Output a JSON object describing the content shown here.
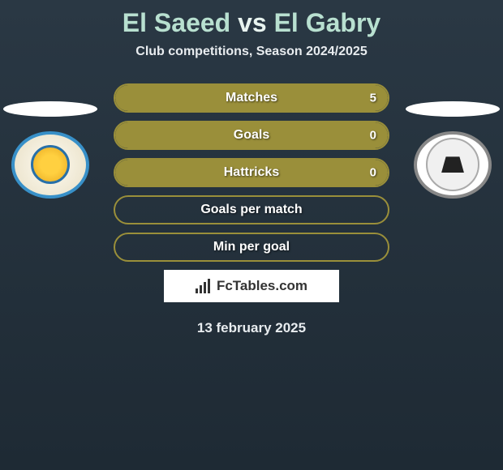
{
  "title": {
    "player1": "El Saeed",
    "vs": "vs",
    "player2": "El Gabry",
    "color_players": "#b8e0d0",
    "color_vs": "#e8f4f0"
  },
  "subtitle": "Club competitions, Season 2024/2025",
  "stats": {
    "border_color": "#9a8f3a",
    "fill_color": "#9a8f3a",
    "rows": [
      {
        "label": "Matches",
        "left_val": "",
        "right_val": "5",
        "left_pct": 0,
        "right_pct": 100
      },
      {
        "label": "Goals",
        "left_val": "",
        "right_val": "0",
        "left_pct": 0,
        "right_pct": 100
      },
      {
        "label": "Hattricks",
        "left_val": "",
        "right_val": "0",
        "left_pct": 0,
        "right_pct": 100
      },
      {
        "label": "Goals per match",
        "left_val": "",
        "right_val": "",
        "left_pct": 0,
        "right_pct": 0
      },
      {
        "label": "Min per goal",
        "left_val": "",
        "right_val": "",
        "left_pct": 0,
        "right_pct": 0
      }
    ]
  },
  "brand": "FcTables.com",
  "date": "13 february 2025",
  "background_gradient": [
    "#2a3844",
    "#1e2a34"
  ]
}
